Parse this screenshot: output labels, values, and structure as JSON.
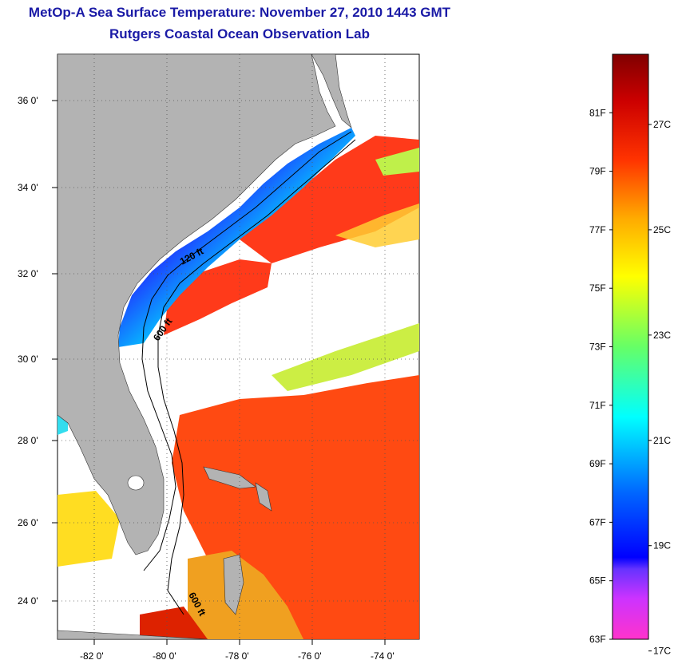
{
  "title": {
    "line1": "MetOp-A Sea Surface Temperature:  November 27, 2010 1443 GMT",
    "line2": "Rutgers Coastal Ocean Observation Lab"
  },
  "map": {
    "lat_ticks": [
      {
        "value": 36,
        "label": "36 0'"
      },
      {
        "value": 34,
        "label": "34 0'"
      },
      {
        "value": 32,
        "label": "32 0'"
      },
      {
        "value": 30,
        "label": "30 0'"
      },
      {
        "value": 28,
        "label": "28 0'"
      },
      {
        "value": 26,
        "label": "26 0'"
      },
      {
        "value": 24,
        "label": "24 0'"
      }
    ],
    "lon_ticks": [
      {
        "value": -82,
        "label": "-82 0'"
      },
      {
        "value": -80,
        "label": "-80 0'"
      },
      {
        "value": -78,
        "label": "-78 0'"
      },
      {
        "value": -76,
        "label": "-76 0'"
      },
      {
        "value": -74,
        "label": "-74 0'"
      }
    ],
    "lat_range": [
      23,
      37
    ],
    "lon_range": [
      -83,
      -73
    ],
    "contours": [
      {
        "label": "120 ft"
      },
      {
        "label": "600 ft"
      },
      {
        "label": "600 ft"
      }
    ],
    "colors": {
      "land": "#b3b3b3",
      "no_data": "#ffffff"
    }
  },
  "colorbar": {
    "unit_f": "F",
    "unit_c": "C",
    "range_f": [
      63,
      83
    ],
    "f_ticks": [
      {
        "value": 81,
        "label": "81F"
      },
      {
        "value": 79,
        "label": "79F"
      },
      {
        "value": 77,
        "label": "77F"
      },
      {
        "value": 75,
        "label": "75F"
      },
      {
        "value": 73,
        "label": "73F"
      },
      {
        "value": 71,
        "label": "71F"
      },
      {
        "value": 69,
        "label": "69F"
      },
      {
        "value": 67,
        "label": "67F"
      },
      {
        "value": 65,
        "label": "65F"
      },
      {
        "value": 63,
        "label": "63F"
      }
    ],
    "c_ticks": [
      {
        "value": 27,
        "label": "27C"
      },
      {
        "value": 25,
        "label": "25C"
      },
      {
        "value": 23,
        "label": "23C"
      },
      {
        "value": 21,
        "label": "21C"
      },
      {
        "value": 19,
        "label": "19C"
      },
      {
        "value": 17,
        "label": "17C"
      }
    ],
    "colors": [
      "#ff33cc",
      "#9933ff",
      "#0000ff",
      "#0088ff",
      "#00ffff",
      "#66ff66",
      "#ffff00",
      "#ffaa00",
      "#ff3300",
      "#cc0000",
      "#800000"
    ]
  }
}
